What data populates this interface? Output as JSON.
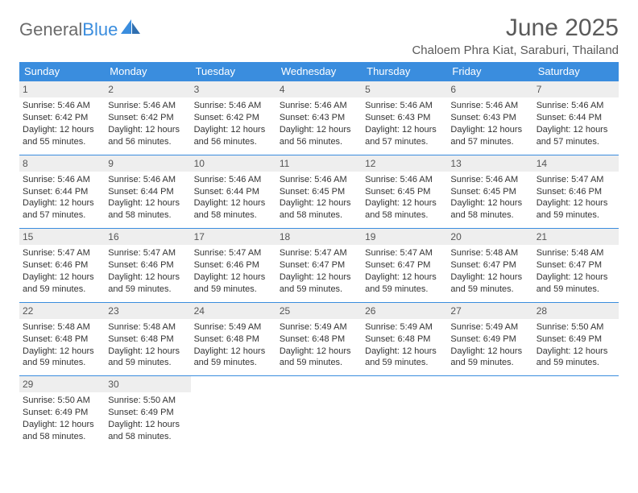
{
  "brand": {
    "part1": "General",
    "part2": "Blue"
  },
  "title": "June 2025",
  "location": "Chaloem Phra Kiat, Saraburi, Thailand",
  "styling": {
    "header_bg": "#3a8dde",
    "header_fg": "#ffffff",
    "daynum_bg": "#eeeeee",
    "border_color": "#3a8dde",
    "page_bg": "#ffffff",
    "body_font_size": 11,
    "title_font_size": 30,
    "location_font_size": 15,
    "columns": 7,
    "rows": 5
  },
  "weekdays": [
    "Sunday",
    "Monday",
    "Tuesday",
    "Wednesday",
    "Thursday",
    "Friday",
    "Saturday"
  ],
  "days": [
    {
      "n": "1",
      "sr": "5:46 AM",
      "ss": "6:42 PM",
      "dl": "12 hours and 55 minutes."
    },
    {
      "n": "2",
      "sr": "5:46 AM",
      "ss": "6:42 PM",
      "dl": "12 hours and 56 minutes."
    },
    {
      "n": "3",
      "sr": "5:46 AM",
      "ss": "6:42 PM",
      "dl": "12 hours and 56 minutes."
    },
    {
      "n": "4",
      "sr": "5:46 AM",
      "ss": "6:43 PM",
      "dl": "12 hours and 56 minutes."
    },
    {
      "n": "5",
      "sr": "5:46 AM",
      "ss": "6:43 PM",
      "dl": "12 hours and 57 minutes."
    },
    {
      "n": "6",
      "sr": "5:46 AM",
      "ss": "6:43 PM",
      "dl": "12 hours and 57 minutes."
    },
    {
      "n": "7",
      "sr": "5:46 AM",
      "ss": "6:44 PM",
      "dl": "12 hours and 57 minutes."
    },
    {
      "n": "8",
      "sr": "5:46 AM",
      "ss": "6:44 PM",
      "dl": "12 hours and 57 minutes."
    },
    {
      "n": "9",
      "sr": "5:46 AM",
      "ss": "6:44 PM",
      "dl": "12 hours and 58 minutes."
    },
    {
      "n": "10",
      "sr": "5:46 AM",
      "ss": "6:44 PM",
      "dl": "12 hours and 58 minutes."
    },
    {
      "n": "11",
      "sr": "5:46 AM",
      "ss": "6:45 PM",
      "dl": "12 hours and 58 minutes."
    },
    {
      "n": "12",
      "sr": "5:46 AM",
      "ss": "6:45 PM",
      "dl": "12 hours and 58 minutes."
    },
    {
      "n": "13",
      "sr": "5:46 AM",
      "ss": "6:45 PM",
      "dl": "12 hours and 58 minutes."
    },
    {
      "n": "14",
      "sr": "5:47 AM",
      "ss": "6:46 PM",
      "dl": "12 hours and 59 minutes."
    },
    {
      "n": "15",
      "sr": "5:47 AM",
      "ss": "6:46 PM",
      "dl": "12 hours and 59 minutes."
    },
    {
      "n": "16",
      "sr": "5:47 AM",
      "ss": "6:46 PM",
      "dl": "12 hours and 59 minutes."
    },
    {
      "n": "17",
      "sr": "5:47 AM",
      "ss": "6:46 PM",
      "dl": "12 hours and 59 minutes."
    },
    {
      "n": "18",
      "sr": "5:47 AM",
      "ss": "6:47 PM",
      "dl": "12 hours and 59 minutes."
    },
    {
      "n": "19",
      "sr": "5:47 AM",
      "ss": "6:47 PM",
      "dl": "12 hours and 59 minutes."
    },
    {
      "n": "20",
      "sr": "5:48 AM",
      "ss": "6:47 PM",
      "dl": "12 hours and 59 minutes."
    },
    {
      "n": "21",
      "sr": "5:48 AM",
      "ss": "6:47 PM",
      "dl": "12 hours and 59 minutes."
    },
    {
      "n": "22",
      "sr": "5:48 AM",
      "ss": "6:48 PM",
      "dl": "12 hours and 59 minutes."
    },
    {
      "n": "23",
      "sr": "5:48 AM",
      "ss": "6:48 PM",
      "dl": "12 hours and 59 minutes."
    },
    {
      "n": "24",
      "sr": "5:49 AM",
      "ss": "6:48 PM",
      "dl": "12 hours and 59 minutes."
    },
    {
      "n": "25",
      "sr": "5:49 AM",
      "ss": "6:48 PM",
      "dl": "12 hours and 59 minutes."
    },
    {
      "n": "26",
      "sr": "5:49 AM",
      "ss": "6:48 PM",
      "dl": "12 hours and 59 minutes."
    },
    {
      "n": "27",
      "sr": "5:49 AM",
      "ss": "6:49 PM",
      "dl": "12 hours and 59 minutes."
    },
    {
      "n": "28",
      "sr": "5:50 AM",
      "ss": "6:49 PM",
      "dl": "12 hours and 59 minutes."
    },
    {
      "n": "29",
      "sr": "5:50 AM",
      "ss": "6:49 PM",
      "dl": "12 hours and 58 minutes."
    },
    {
      "n": "30",
      "sr": "5:50 AM",
      "ss": "6:49 PM",
      "dl": "12 hours and 58 minutes."
    }
  ],
  "labels": {
    "sunrise": "Sunrise: ",
    "sunset": "Sunset: ",
    "daylight": "Daylight: "
  }
}
